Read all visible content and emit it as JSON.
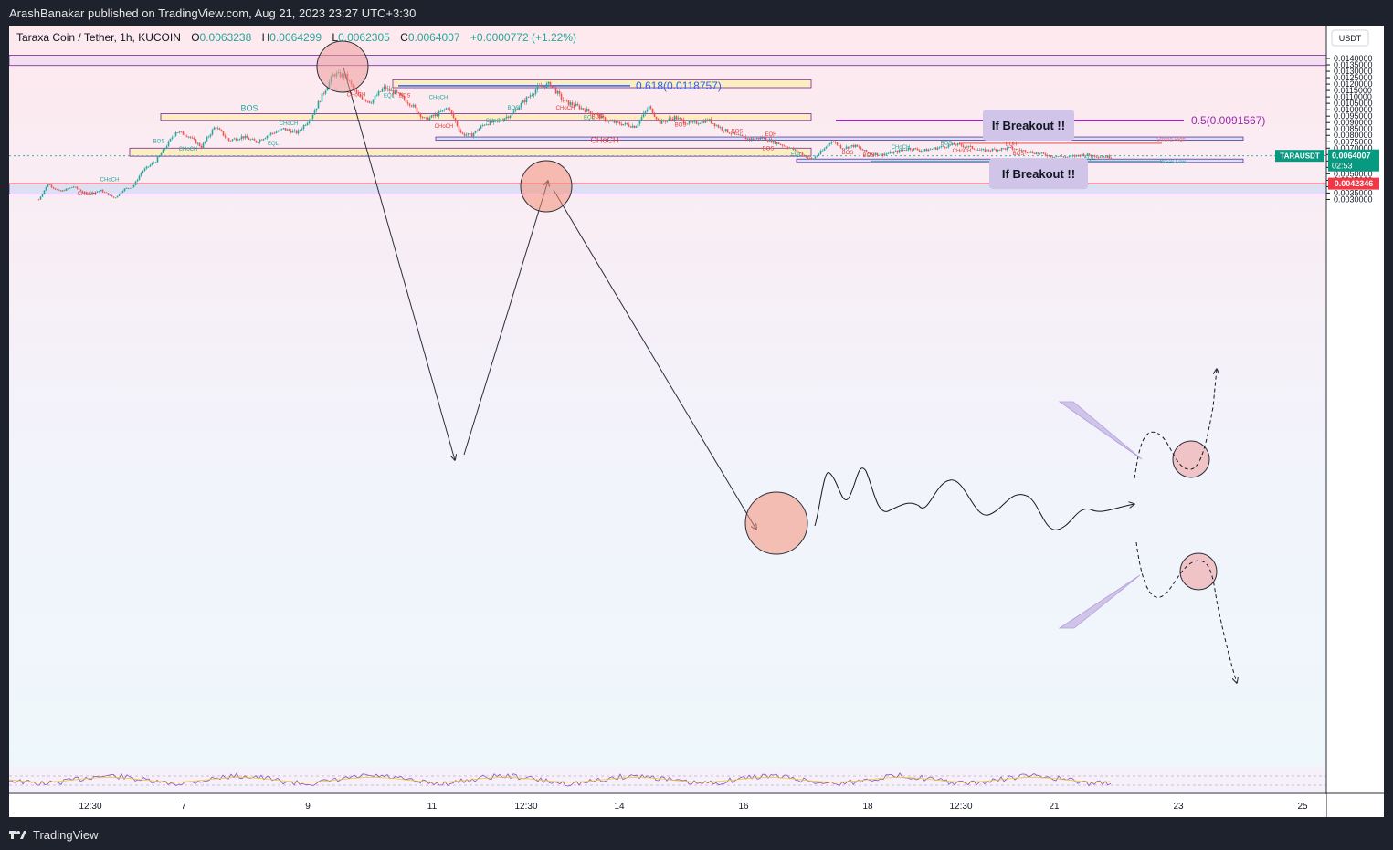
{
  "header": {
    "publisher_line": "ArashBanakar published on TradingView.com, Aug 21, 2023 23:27 UTC+3:30"
  },
  "footer": {
    "brand": "TradingView"
  },
  "chart_data": {
    "type": "candlestick",
    "symbol_line": {
      "symbol": "Taraxa Coin / Tether, 1h, KUCOIN",
      "o_label": "O",
      "o": "0.0063238",
      "h_label": "H",
      "h": "0.0064299",
      "l_label": "L",
      "l": "0.0062305",
      "c_label": "C",
      "c": "0.0064007",
      "change": "+0.0000772 (+1.22%)"
    },
    "currency": "USDT",
    "ylim": [
      0.0029,
      0.0143
    ],
    "y_ticks": [
      "0.0140000",
      "0.0135000",
      "0.0130000",
      "0.0125000",
      "0.0120000",
      "0.0115000",
      "0.0110000",
      "0.0105000",
      "0.0100000",
      "0.0095000",
      "0.0090000",
      "0.0085000",
      "0.0080000",
      "0.0075000",
      "0.0070000",
      "0.0065000",
      "0.0060000",
      "0.0055000",
      "0.0050000",
      "0.0045000",
      "0.0040000",
      "0.0035000",
      "0.0030000"
    ],
    "x_ticks": [
      "12:30",
      "7",
      "9",
      "11",
      "12:30",
      "14",
      "16",
      "18",
      "12:30",
      "21",
      "23",
      "25"
    ],
    "last_price": {
      "ticker": "TARAUSDT",
      "price": "0.0064007",
      "countdown": "02:53",
      "value": 0.0064007
    },
    "red_level": {
      "label": "0.0042346",
      "value": 0.0042346
    },
    "fib_618": {
      "label": "0.618(0.0118757)",
      "value": 0.0118757
    },
    "fib_05": {
      "label": "0.5(0.0091567)",
      "value": 0.0091567
    },
    "zones": [
      {
        "name": "top-supply",
        "top": 0.01425,
        "bottom": 0.01345,
        "color": "#f3e0ee"
      },
      {
        "name": "upper-order-block",
        "top": 0.01234,
        "bottom": 0.01172,
        "color": "#fbefc0"
      },
      {
        "name": "middle-order-block",
        "top": 0.00969,
        "bottom": 0.00917,
        "color": "#fbefc0"
      },
      {
        "name": "blue-resistance",
        "top": 0.00787,
        "bottom": 0.00762,
        "color": "#c7ecf1"
      },
      {
        "name": "lower-order-block",
        "top": 0.007,
        "bottom": 0.00637,
        "color": "#fbefc0"
      },
      {
        "name": "blue-support",
        "top": 0.00615,
        "bottom": 0.00589,
        "color": "#c7ecf1"
      },
      {
        "name": "bottom-demand",
        "top": 0.00423,
        "bottom": 0.00343,
        "color": "#dde0f2"
      }
    ],
    "structure_labels": [
      {
        "text": "BOS",
        "x": 263,
        "price": 0.0099,
        "color": "#26a69a",
        "size": 9
      },
      {
        "text": "CHoCH",
        "x": 652,
        "price": 0.0074,
        "color": "#e53935",
        "size": 9
      },
      {
        "text": "CHoCH",
        "x": 380,
        "price": 0.01104,
        "color": "#e53935",
        "size": 6
      },
      {
        "text": "EQL",
        "x": 416,
        "price": 0.01098,
        "color": "#26a69a",
        "size": 6
      },
      {
        "text": "BOS",
        "x": 433,
        "price": 0.01098,
        "color": "#e53935",
        "size": 6
      },
      {
        "text": "CHoCH",
        "x": 470,
        "price": 0.01083,
        "color": "#26a69a",
        "size": 6
      },
      {
        "text": "BOS",
        "x": 552,
        "price": 0.01,
        "color": "#26a69a",
        "size": 6
      },
      {
        "text": "CHoCH",
        "x": 609,
        "price": 0.01,
        "color": "#e53935",
        "size": 6
      },
      {
        "text": "CHoCH",
        "x": 306,
        "price": 0.0088,
        "color": "#26a69a",
        "size": 6
      },
      {
        "text": "CHoCH",
        "x": 532,
        "price": 0.009,
        "color": "#26a69a",
        "size": 6
      },
      {
        "text": "CHoCH",
        "x": 476,
        "price": 0.00858,
        "color": "#e53935",
        "size": 6
      },
      {
        "text": "EQL",
        "x": 635,
        "price": 0.00927,
        "color": "#26a69a",
        "size": 6
      },
      {
        "text": "BOS",
        "x": 644,
        "price": 0.00932,
        "color": "#e53935",
        "size": 6
      },
      {
        "text": "BOS",
        "x": 735,
        "price": 0.00868,
        "color": "#e53935",
        "size": 6
      },
      {
        "text": "EQH",
        "x": 834,
        "price": 0.00795,
        "color": "#e53935",
        "size": 6
      },
      {
        "text": "BOS",
        "x": 797,
        "price": 0.0082,
        "color": "#e53935",
        "size": 6
      },
      {
        "text": "BOS",
        "x": 164,
        "price": 0.0074,
        "color": "#26a69a",
        "size": 6
      },
      {
        "text": "EQL",
        "x": 289,
        "price": 0.00725,
        "color": "#26a69a",
        "size": 6
      },
      {
        "text": "CHoCH",
        "x": 196,
        "price": 0.0068,
        "color": "#26a69a",
        "size": 6
      },
      {
        "text": "CHoCH",
        "x": 110,
        "price": 0.00443,
        "color": "#26a69a",
        "size": 6
      },
      {
        "text": "CHoCH",
        "x": 85,
        "price": 0.00333,
        "color": "#e53935",
        "size": 6
      },
      {
        "text": "BOS",
        "x": 831,
        "price": 0.00683,
        "color": "#e53935",
        "size": 6
      },
      {
        "text": "EQL",
        "x": 862,
        "price": 0.00643,
        "color": "#26a69a",
        "size": 6
      },
      {
        "text": "BOS",
        "x": 918,
        "price": 0.00652,
        "color": "#e53935",
        "size": 6
      },
      {
        "text": "BOS",
        "x": 941,
        "price": 0.00631,
        "color": "#e53935",
        "size": 6
      },
      {
        "text": "CHoCH",
        "x": 976,
        "price": 0.00695,
        "color": "#26a69a",
        "size": 6
      },
      {
        "text": "BOS",
        "x": 1026,
        "price": 0.00726,
        "color": "#26a69a",
        "size": 6
      },
      {
        "text": "CHoCH",
        "x": 1043,
        "price": 0.00665,
        "color": "#e53935",
        "size": 6
      },
      {
        "text": "EQH",
        "x": 1097,
        "price": 0.00719,
        "color": "#e53935",
        "size": 6
      },
      {
        "text": "BOS",
        "x": 1105,
        "price": 0.00646,
        "color": "#e53935",
        "size": 6
      },
      {
        "text": "EQL",
        "x": 1183,
        "price": 0.0061,
        "color": "#26a69a",
        "size": 6
      },
      {
        "text": "Strong High",
        "x": 1272,
        "price": 0.00755,
        "color": "#e57373",
        "size": 6
      },
      {
        "text": "Weak Low",
        "x": 1274,
        "price": 0.00581,
        "color": "#26a69a",
        "size": 6
      }
    ],
    "callouts": [
      {
        "text": "If Breakout !!",
        "price": 0.0088
      },
      {
        "text": "If Breakout !!",
        "price": 0.00502
      }
    ]
  }
}
